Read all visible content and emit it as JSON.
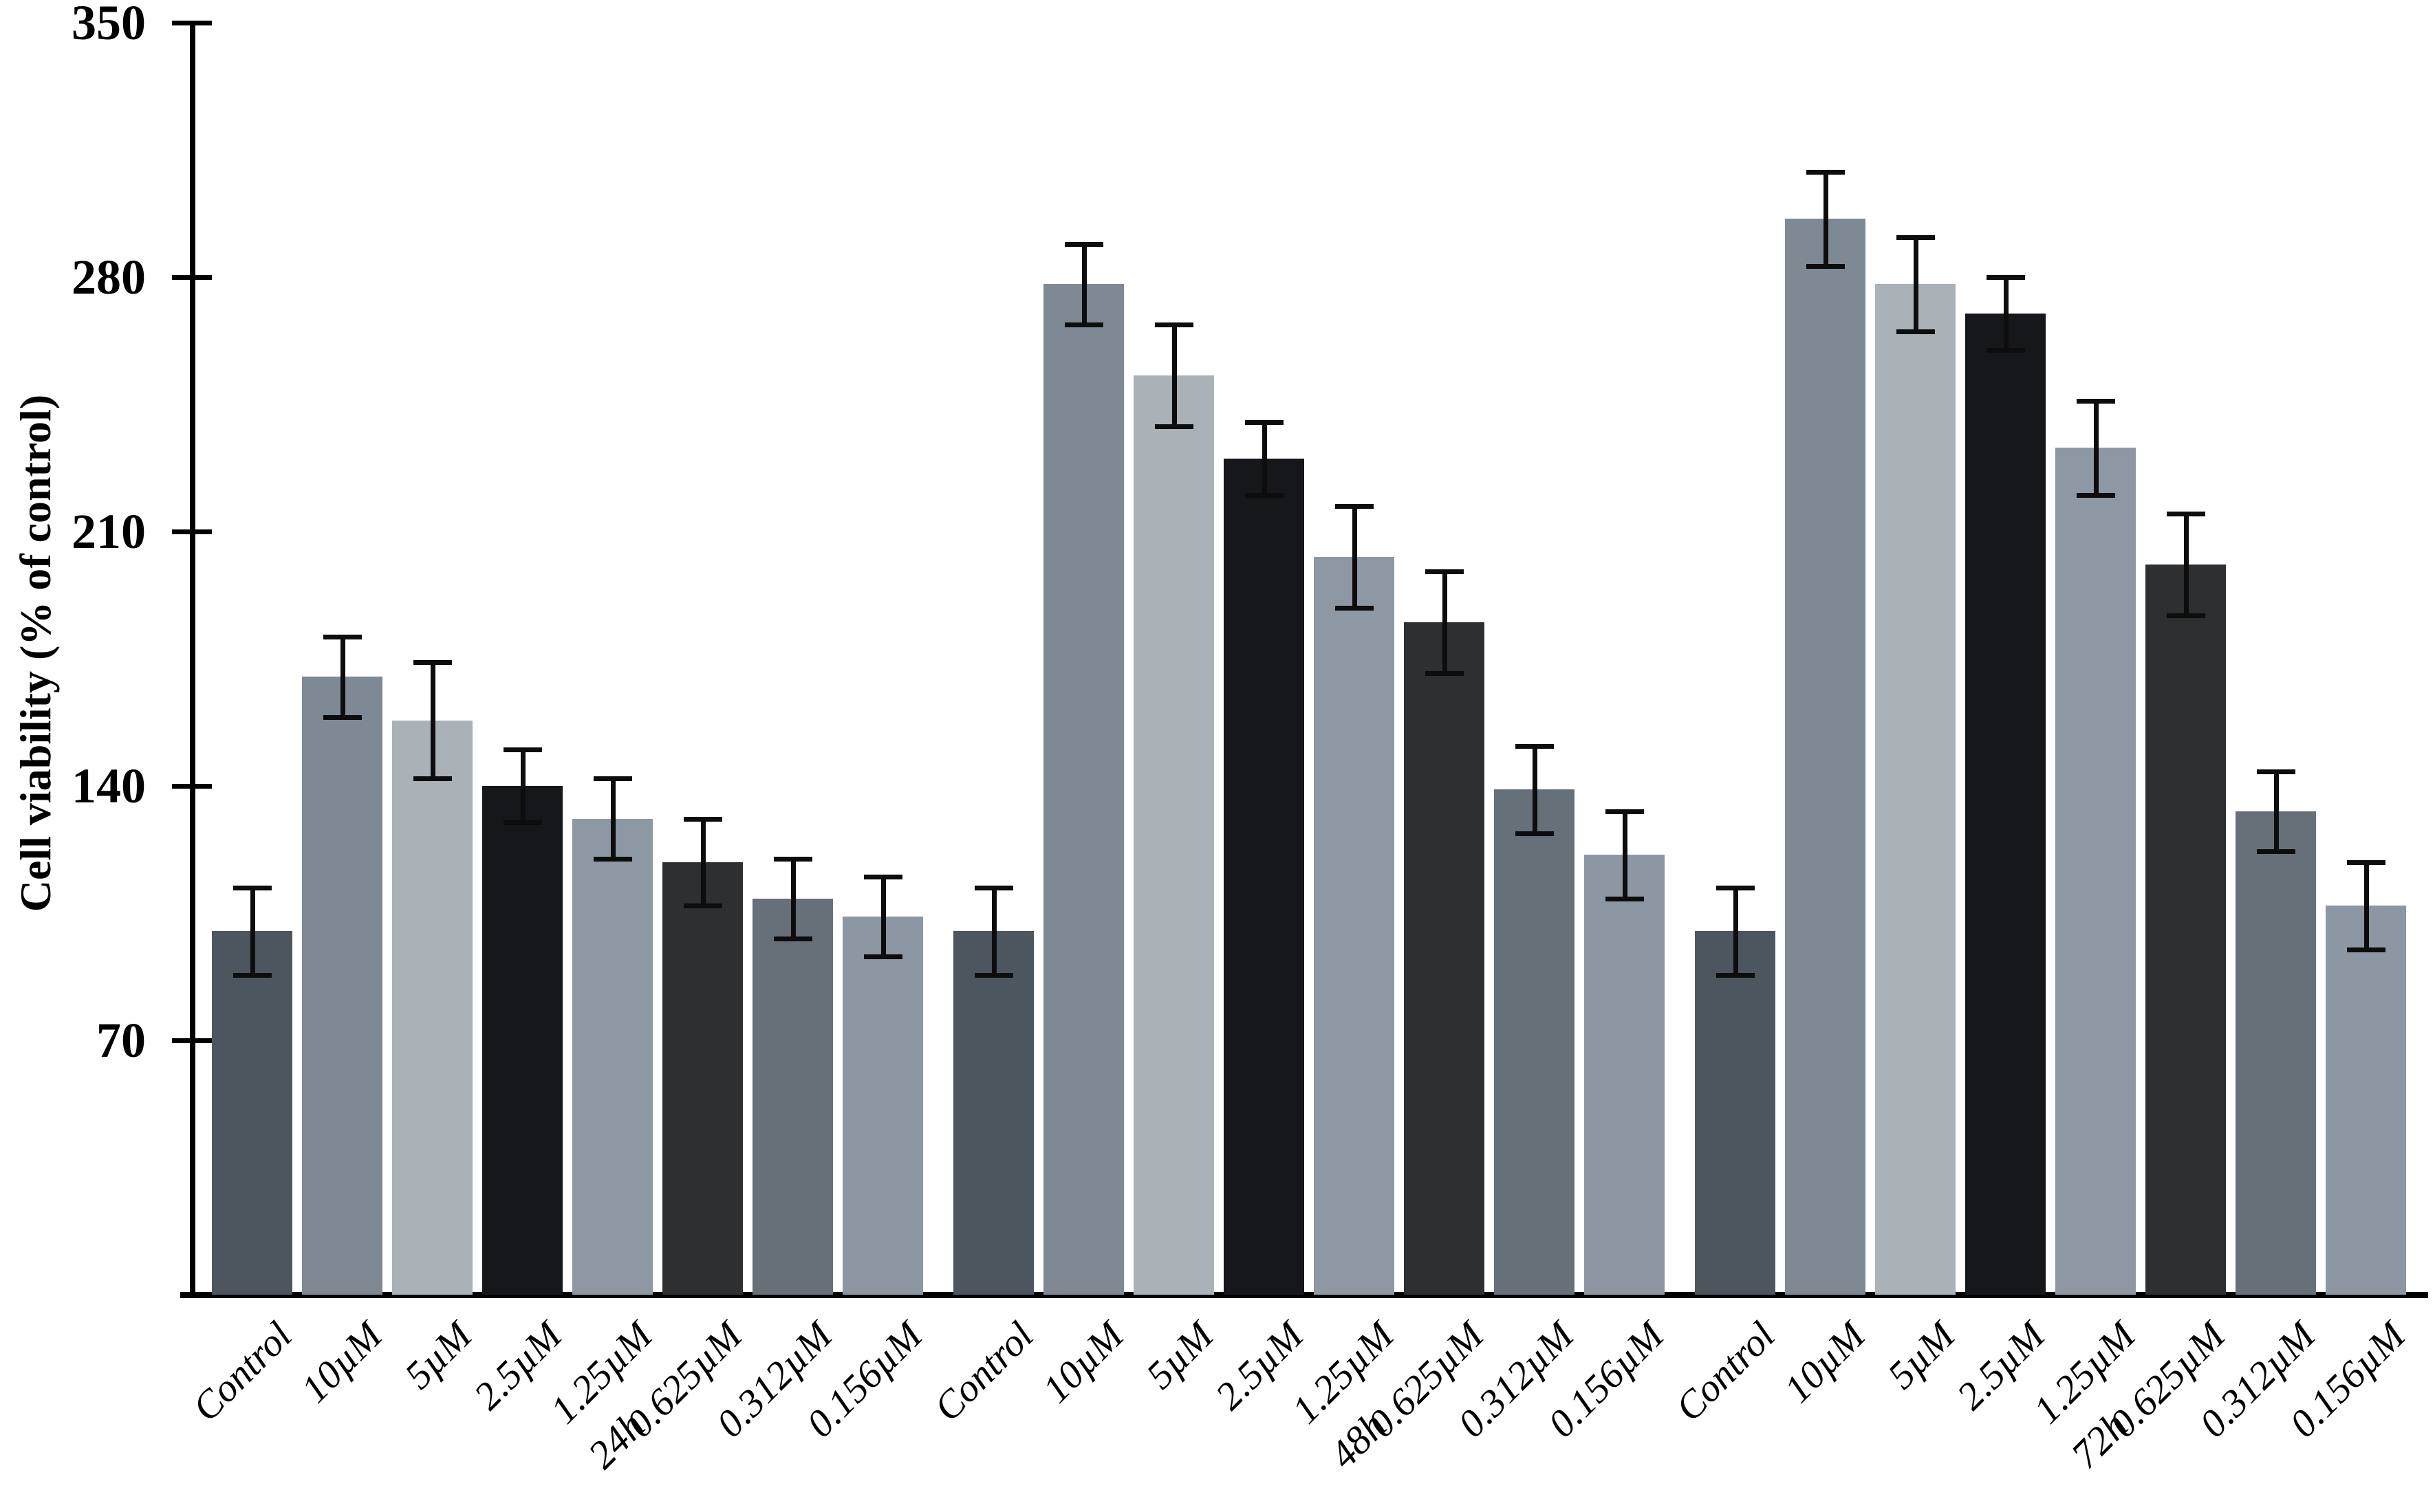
{
  "page": {
    "background": "#ffffff"
  },
  "chart_data": {
    "type": "bar",
    "title": "",
    "xlabel": "",
    "ylabel": "Cell viability (% of control)",
    "ylim": [
      0,
      350
    ],
    "yticks": [
      70,
      140,
      210,
      280,
      350
    ],
    "grid": false,
    "legend": "none",
    "error_bars": true,
    "error_bar_color": "#0d0d0d",
    "axis_color": "#000000",
    "categories": [
      "Control",
      "10µM",
      "5µM",
      "2.5µM",
      "1.25µM",
      "0.625µM",
      "0.312µM",
      "0.156µM"
    ],
    "bar_colors": [
      "#4d565e",
      "#7e8994",
      "#aab2b8",
      "#16171a",
      "#8e98a5",
      "#2d2f31",
      "#677079",
      "#8d97a3"
    ],
    "groups": [
      {
        "label": "24h",
        "values": [
          100,
          170,
          158,
          140,
          131,
          119,
          109,
          104
        ],
        "errors": [
          12,
          11,
          16,
          10,
          11,
          12,
          11,
          11
        ]
      },
      {
        "label": "48h",
        "values": [
          100,
          278,
          253,
          230,
          203,
          185,
          139,
          121
        ],
        "errors": [
          12,
          11,
          14,
          10,
          14,
          14,
          12,
          12
        ]
      },
      {
        "label": "72h",
        "values": [
          100,
          296,
          278,
          270,
          233,
          201,
          133,
          107
        ],
        "errors": [
          12,
          13,
          13,
          10,
          13,
          14,
          11,
          12
        ]
      }
    ]
  }
}
